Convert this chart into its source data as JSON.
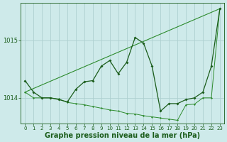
{
  "background_color": "#ceeaea",
  "grid_color": "#aed0d0",
  "line_color_dark": "#1a5c1a",
  "line_color_medium": "#2d8b2d",
  "xlabel": "Graphe pression niveau de la mer (hPa)",
  "xlabel_fontsize": 7,
  "xlim": [
    -0.5,
    23.5
  ],
  "ylim": [
    1013.55,
    1015.65
  ],
  "yticks": [
    1014,
    1015
  ],
  "xticks": [
    0,
    1,
    2,
    3,
    4,
    5,
    6,
    7,
    8,
    9,
    10,
    11,
    12,
    13,
    14,
    15,
    16,
    17,
    18,
    19,
    20,
    21,
    22,
    23
  ],
  "series1_x": [
    0,
    1,
    2,
    3,
    4,
    5,
    6,
    7,
    8,
    9,
    10,
    11,
    12,
    13,
    14,
    15,
    16,
    17,
    18,
    19,
    20,
    21,
    22,
    23
  ],
  "series1_y": [
    1014.3,
    1014.1,
    1014.0,
    1014.0,
    1013.97,
    1013.93,
    1014.15,
    1014.28,
    1014.3,
    1014.55,
    1014.65,
    1014.42,
    1014.62,
    1015.05,
    1014.95,
    1014.55,
    1013.77,
    1013.9,
    1013.9,
    1013.97,
    1014.0,
    1014.1,
    1014.55,
    1015.55
  ],
  "series2_x": [
    0,
    1,
    2,
    3,
    4,
    5,
    6,
    7,
    8,
    9,
    10,
    11,
    12,
    13,
    14,
    15,
    16,
    17,
    18,
    19,
    20,
    21,
    22,
    23
  ],
  "series2_y": [
    1014.1,
    1014.0,
    1014.0,
    1014.0,
    1013.98,
    1013.92,
    1013.9,
    1013.88,
    1013.85,
    1013.82,
    1013.79,
    1013.77,
    1013.73,
    1013.72,
    1013.69,
    1013.67,
    1013.65,
    1013.63,
    1013.61,
    1013.88,
    1013.89,
    1014.0,
    1014.0,
    1015.55
  ],
  "series3_x": [
    0,
    23
  ],
  "series3_y": [
    1014.1,
    1015.55
  ]
}
